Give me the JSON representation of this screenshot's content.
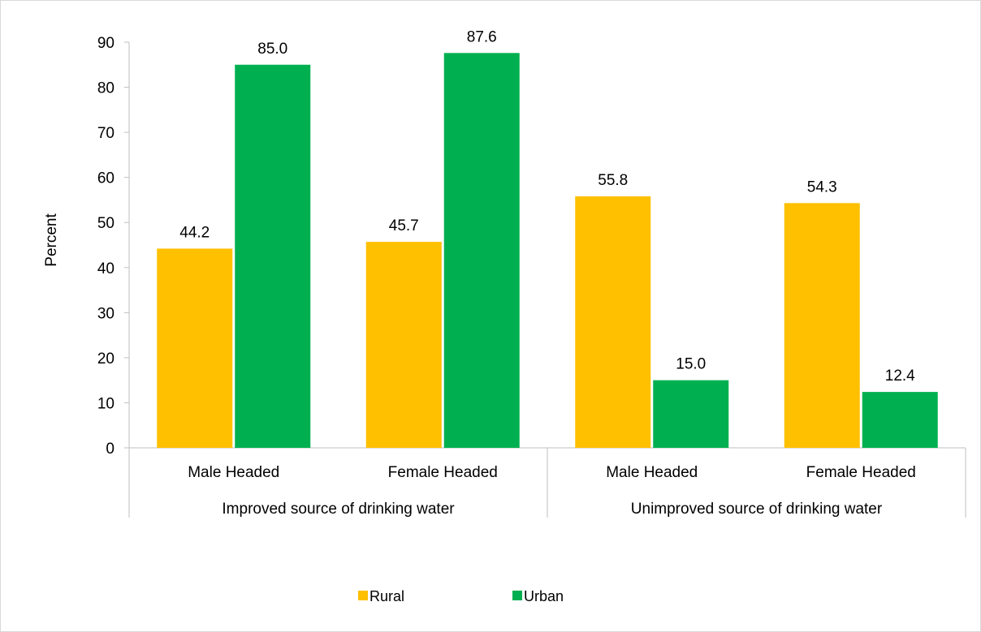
{
  "chart_data": {
    "type": "bar",
    "title": "",
    "xlabel": "",
    "ylabel": "Percent",
    "ylim": [
      0,
      90
    ],
    "yticks": [
      0,
      10,
      20,
      30,
      40,
      50,
      60,
      70,
      80,
      90
    ],
    "grid": false,
    "legend_position": "bottom",
    "groups": [
      {
        "label": "Improved source of drinking water",
        "categories": [
          "Male Headed",
          "Female Headed"
        ]
      },
      {
        "label": "Unimproved source of drinking water",
        "categories": [
          "Male Headed",
          "Female Headed"
        ]
      }
    ],
    "categories": [
      "Male Headed",
      "Female Headed",
      "Male Headed",
      "Female Headed"
    ],
    "series": [
      {
        "name": "Rural",
        "color": "#ffc000",
        "values": [
          44.2,
          45.7,
          55.8,
          54.3
        ],
        "labels": [
          "44.2",
          "45.7",
          "55.8",
          "54.3"
        ]
      },
      {
        "name": "Urban",
        "color": "#00b050",
        "values": [
          85.0,
          87.6,
          15.0,
          12.4
        ],
        "labels": [
          "85.0",
          "87.6",
          "15.0",
          "12.4"
        ]
      }
    ]
  }
}
